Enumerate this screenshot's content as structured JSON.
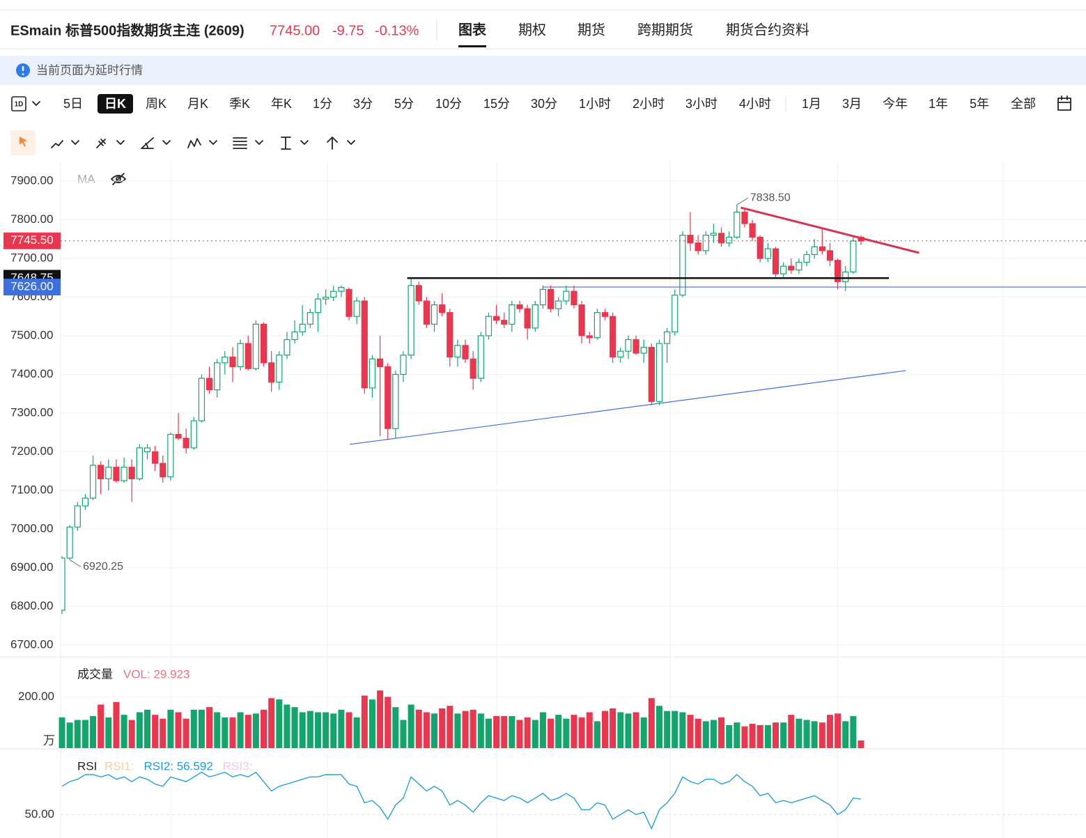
{
  "header": {
    "title": "ESmain 标普500指数期货主连 (2609)",
    "price": "7745.00",
    "change": "-9.75",
    "change_pct": "-0.13%",
    "tabs": [
      "图表",
      "期权",
      "期货",
      "跨期期货",
      "期货合约资料"
    ],
    "active_tab": 0
  },
  "notice": "当前页面为延时行情",
  "toolbar": {
    "interval_icon": "1D",
    "periods": [
      "5日",
      "日K",
      "周K",
      "月K",
      "季K",
      "年K",
      "1分",
      "3分",
      "5分",
      "10分",
      "15分",
      "30分",
      "1小时",
      "2小时",
      "3小时",
      "4小时",
      "1月",
      "3月",
      "今年",
      "1年",
      "5年",
      "全部"
    ],
    "active_period": 1
  },
  "chart_data": {
    "type": "candlestick",
    "indicator_label": "MA",
    "up_color": "#13a56c",
    "down_color": "#e8374f",
    "ylim": [
      6700,
      7900
    ],
    "yticks": [
      {
        "value": 6700,
        "label": "6700.00"
      },
      {
        "value": 6800,
        "label": "6800.00"
      },
      {
        "value": 6900,
        "label": "6900.00"
      },
      {
        "value": 7000,
        "label": "7000.00"
      },
      {
        "value": 7100,
        "label": "7100.00"
      },
      {
        "value": 7200,
        "label": "7200.00"
      },
      {
        "value": 7300,
        "label": "7300.00"
      },
      {
        "value": 7400,
        "label": "7400.00"
      },
      {
        "value": 7500,
        "label": "7500.00"
      },
      {
        "value": 7600,
        "label": "7600.00"
      },
      {
        "value": 7700,
        "label": "7700.00"
      },
      {
        "value": 7800,
        "label": "7800.00"
      },
      {
        "value": 7900,
        "label": "7900.00"
      }
    ],
    "candles": [
      [
        6790,
        6930,
        6780,
        6925
      ],
      [
        6925,
        7010,
        6920.25,
        7005
      ],
      [
        7005,
        7070,
        6995,
        7060
      ],
      [
        7060,
        7090,
        7050,
        7080
      ],
      [
        7080,
        7190,
        7075,
        7165
      ],
      [
        7165,
        7175,
        7090,
        7130
      ],
      [
        7130,
        7180,
        7100,
        7160
      ],
      [
        7160,
        7180,
        7120,
        7125
      ],
      [
        7125,
        7185,
        7120,
        7160
      ],
      [
        7160,
        7180,
        7070,
        7130
      ],
      [
        7130,
        7220,
        7125,
        7210
      ],
      [
        7200,
        7220,
        7180,
        7210
      ],
      [
        7200,
        7215,
        7150,
        7170
      ],
      [
        7170,
        7190,
        7120,
        7135
      ],
      [
        7135,
        7250,
        7125,
        7245
      ],
      [
        7245,
        7300,
        7230,
        7235
      ],
      [
        7235,
        7260,
        7195,
        7210
      ],
      [
        7210,
        7290,
        7205,
        7280
      ],
      [
        7280,
        7400,
        7275,
        7390
      ],
      [
        7390,
        7420,
        7350,
        7360
      ],
      [
        7360,
        7440,
        7340,
        7430
      ],
      [
        7430,
        7460,
        7400,
        7445
      ],
      [
        7445,
        7470,
        7380,
        7420
      ],
      [
        7420,
        7490,
        7410,
        7480
      ],
      [
        7480,
        7500,
        7410,
        7415
      ],
      [
        7415,
        7540,
        7410,
        7530
      ],
      [
        7530,
        7535,
        7420,
        7430
      ],
      [
        7430,
        7460,
        7355,
        7380
      ],
      [
        7380,
        7460,
        7360,
        7450
      ],
      [
        7450,
        7510,
        7440,
        7490
      ],
      [
        7490,
        7540,
        7480,
        7510
      ],
      [
        7510,
        7580,
        7500,
        7530
      ],
      [
        7530,
        7570,
        7520,
        7560
      ],
      [
        7560,
        7610,
        7510,
        7595
      ],
      [
        7595,
        7620,
        7580,
        7600
      ],
      [
        7600,
        7630,
        7590,
        7615
      ],
      [
        7615,
        7630,
        7600,
        7625
      ],
      [
        7620,
        7625,
        7540,
        7550
      ],
      [
        7550,
        7600,
        7530,
        7590
      ],
      [
        7590,
        7600,
        7350,
        7365
      ],
      [
        7365,
        7450,
        7340,
        7440
      ],
      [
        7440,
        7500,
        7240,
        7420
      ],
      [
        7420,
        7430,
        7230,
        7260
      ],
      [
        7260,
        7410,
        7235,
        7400
      ],
      [
        7400,
        7460,
        7380,
        7450
      ],
      [
        7450,
        7650,
        7440,
        7630
      ],
      [
        7630,
        7640,
        7580,
        7590
      ],
      [
        7590,
        7600,
        7520,
        7530
      ],
      [
        7530,
        7590,
        7510,
        7580
      ],
      [
        7580,
        7610,
        7550,
        7560
      ],
      [
        7560,
        7570,
        7420,
        7445
      ],
      [
        7445,
        7490,
        7420,
        7475
      ],
      [
        7475,
        7490,
        7430,
        7440
      ],
      [
        7440,
        7460,
        7360,
        7390
      ],
      [
        7390,
        7510,
        7380,
        7500
      ],
      [
        7500,
        7560,
        7490,
        7550
      ],
      [
        7550,
        7580,
        7530,
        7540
      ],
      [
        7540,
        7560,
        7520,
        7530
      ],
      [
        7530,
        7590,
        7510,
        7580
      ],
      [
        7580,
        7590,
        7560,
        7570
      ],
      [
        7570,
        7580,
        7490,
        7520
      ],
      [
        7520,
        7590,
        7510,
        7580
      ],
      [
        7580,
        7630,
        7570,
        7620
      ],
      [
        7620,
        7630,
        7560,
        7570
      ],
      [
        7570,
        7600,
        7550,
        7590
      ],
      [
        7590,
        7630,
        7580,
        7615
      ],
      [
        7615,
        7630,
        7570,
        7580
      ],
      [
        7580,
        7590,
        7480,
        7500
      ],
      [
        7500,
        7510,
        7480,
        7495
      ],
      [
        7495,
        7570,
        7490,
        7560
      ],
      [
        7560,
        7570,
        7540,
        7550
      ],
      [
        7550,
        7560,
        7430,
        7445
      ],
      [
        7445,
        7470,
        7430,
        7460
      ],
      [
        7460,
        7500,
        7440,
        7490
      ],
      [
        7490,
        7500,
        7450,
        7455
      ],
      [
        7455,
        7490,
        7430,
        7470
      ],
      [
        7470,
        7480,
        7320,
        7330
      ],
      [
        7330,
        7490,
        7320,
        7480
      ],
      [
        7480,
        7520,
        7430,
        7510
      ],
      [
        7510,
        7620,
        7500,
        7605
      ],
      [
        7605,
        7770,
        7600,
        7760
      ],
      [
        7760,
        7820,
        7720,
        7740
      ],
      [
        7740,
        7760,
        7710,
        7720
      ],
      [
        7720,
        7770,
        7710,
        7760
      ],
      [
        7760,
        7790,
        7740,
        7765
      ],
      [
        7765,
        7780,
        7730,
        7740
      ],
      [
        7740,
        7770,
        7730,
        7755
      ],
      [
        7755,
        7838.5,
        7750,
        7820
      ],
      [
        7820,
        7830,
        7780,
        7790
      ],
      [
        7790,
        7800,
        7745,
        7755
      ],
      [
        7755,
        7760,
        7690,
        7700
      ],
      [
        7700,
        7740,
        7690,
        7725
      ],
      [
        7725,
        7730,
        7650,
        7660
      ],
      [
        7660,
        7690,
        7650,
        7680
      ],
      [
        7680,
        7700,
        7660,
        7670
      ],
      [
        7670,
        7700,
        7660,
        7690
      ],
      [
        7690,
        7720,
        7680,
        7710
      ],
      [
        7710,
        7750,
        7700,
        7730
      ],
      [
        7730,
        7780,
        7710,
        7720
      ],
      [
        7720,
        7740,
        7680,
        7695
      ],
      [
        7695,
        7700,
        7620,
        7640
      ],
      [
        7640,
        7680,
        7615,
        7665
      ],
      [
        7665,
        7760,
        7660,
        7745
      ],
      [
        7755,
        7760,
        7735,
        7745
      ]
    ],
    "annotations": [
      {
        "label": "7838.50",
        "value": 7838.5,
        "index": 87
      },
      {
        "label": "6920.25",
        "value": 6920.25,
        "index": 1
      }
    ],
    "price_tags": [
      {
        "value": 7745.5,
        "label": "7745.50",
        "color": "#e8374f",
        "line": "dotted"
      },
      {
        "value": 7648.75,
        "label": "7648.75",
        "color": "#111111"
      },
      {
        "value": 7626,
        "label": "7626.00",
        "color": "#3d6fe0"
      }
    ],
    "trend_lines": [
      {
        "color": "#d93352",
        "from": [
          87.5,
          7831.5
        ],
        "to": [
          110.5,
          7714.4
        ]
      },
      {
        "color": "#111111",
        "from": [
          44.5,
          7649
        ],
        "to": [
          106.6,
          7649
        ]
      },
      {
        "color": "#3d6fe0",
        "from": [
          62,
          7626
        ],
        "to": [
          132,
          7626
        ]
      },
      {
        "color": "#3d6fe0",
        "from": [
          37.1,
          7219
        ],
        "to": [
          108.8,
          7410
        ]
      }
    ],
    "volume": {
      "title": "成交量",
      "label": "VOL: 29.923",
      "unit": "万",
      "ylim": [
        0,
        250
      ],
      "yticks": [
        {
          "value": 200,
          "label": "200.00"
        }
      ],
      "values": [
        120,
        100,
        110,
        110,
        125,
        170,
        120,
        180,
        130,
        110,
        140,
        150,
        130,
        115,
        150,
        140,
        115,
        150,
        150,
        160,
        140,
        120,
        120,
        140,
        130,
        135,
        150,
        195,
        190,
        170,
        160,
        140,
        145,
        140,
        140,
        135,
        150,
        140,
        120,
        205,
        190,
        225,
        200,
        160,
        110,
        170,
        150,
        140,
        135,
        155,
        165,
        135,
        145,
        150,
        135,
        115,
        125,
        125,
        125,
        110,
        120,
        110,
        140,
        115,
        130,
        115,
        130,
        120,
        140,
        105,
        145,
        155,
        140,
        135,
        140,
        120,
        195,
        165,
        145,
        145,
        140,
        130,
        115,
        105,
        110,
        120,
        90,
        100,
        85,
        95,
        90,
        90,
        100,
        100,
        130,
        115,
        110,
        105,
        100,
        130,
        135,
        105,
        125,
        29.923
      ]
    },
    "rsi": {
      "title": "RSI",
      "labels": [
        {
          "text": "RSI1:",
          "color": "#f4cfa6"
        },
        {
          "text": "RSI2: 56.592",
          "color": "#1e9ad6"
        },
        {
          "text": "RSI3:",
          "color": "#efc9ea"
        }
      ],
      "color": "#22a0d8",
      "ylim": [
        40,
        75
      ],
      "yticks": [
        {
          "value": 50,
          "label": "50.00"
        }
      ],
      "values": [
        62,
        64,
        65,
        67,
        67,
        66,
        67,
        65,
        66,
        64,
        66,
        65,
        63,
        62,
        66,
        65,
        64,
        66,
        68,
        66,
        67,
        68,
        66,
        67,
        66,
        68,
        64,
        60,
        62,
        63,
        64,
        65,
        66,
        66,
        67,
        67,
        67,
        63,
        62,
        55,
        56,
        53,
        48,
        54,
        57,
        66,
        63,
        60,
        62,
        60,
        54,
        56,
        54,
        51,
        55,
        58,
        57,
        56,
        58,
        57,
        55,
        57,
        59,
        56,
        57,
        59,
        57,
        52,
        52,
        55,
        54,
        48,
        50,
        52,
        50,
        51,
        44,
        52,
        55,
        59,
        66,
        64,
        63,
        65,
        65,
        63,
        64,
        67,
        64,
        62,
        58,
        59,
        55,
        56,
        55,
        56,
        57,
        58,
        56,
        54,
        50,
        52,
        57,
        56.592
      ]
    }
  }
}
